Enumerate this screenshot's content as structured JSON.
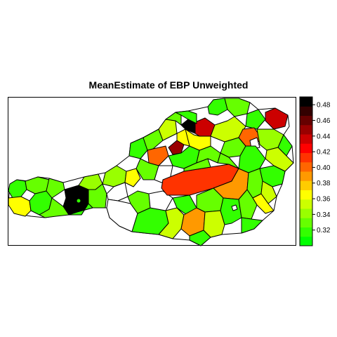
{
  "title": "MeanEstimate of EBP Unweighted",
  "legend": {
    "ticks": [
      "0.48",
      "0.46",
      "0.44",
      "0.42",
      "0.40",
      "0.38",
      "0.36",
      "0.34",
      "0.32"
    ],
    "tick_values": [
      0.48,
      0.46,
      0.44,
      0.42,
      0.4,
      0.38,
      0.36,
      0.34,
      0.32
    ],
    "range": [
      0.3,
      0.49
    ],
    "palette": [
      "#00ff00",
      "#33ff00",
      "#66ff00",
      "#99ff00",
      "#ccff00",
      "#ffff00",
      "#ffcc00",
      "#ff9900",
      "#ff6600",
      "#ff3300",
      "#ff0000",
      "#cc0000",
      "#990000",
      "#660000",
      "#330000",
      "#000000"
    ]
  },
  "colors": {
    "low": "#00ff00",
    "mid": "#ffff00",
    "high_red": "#ff0000",
    "top": "#000000",
    "missing": "#ffffff"
  }
}
